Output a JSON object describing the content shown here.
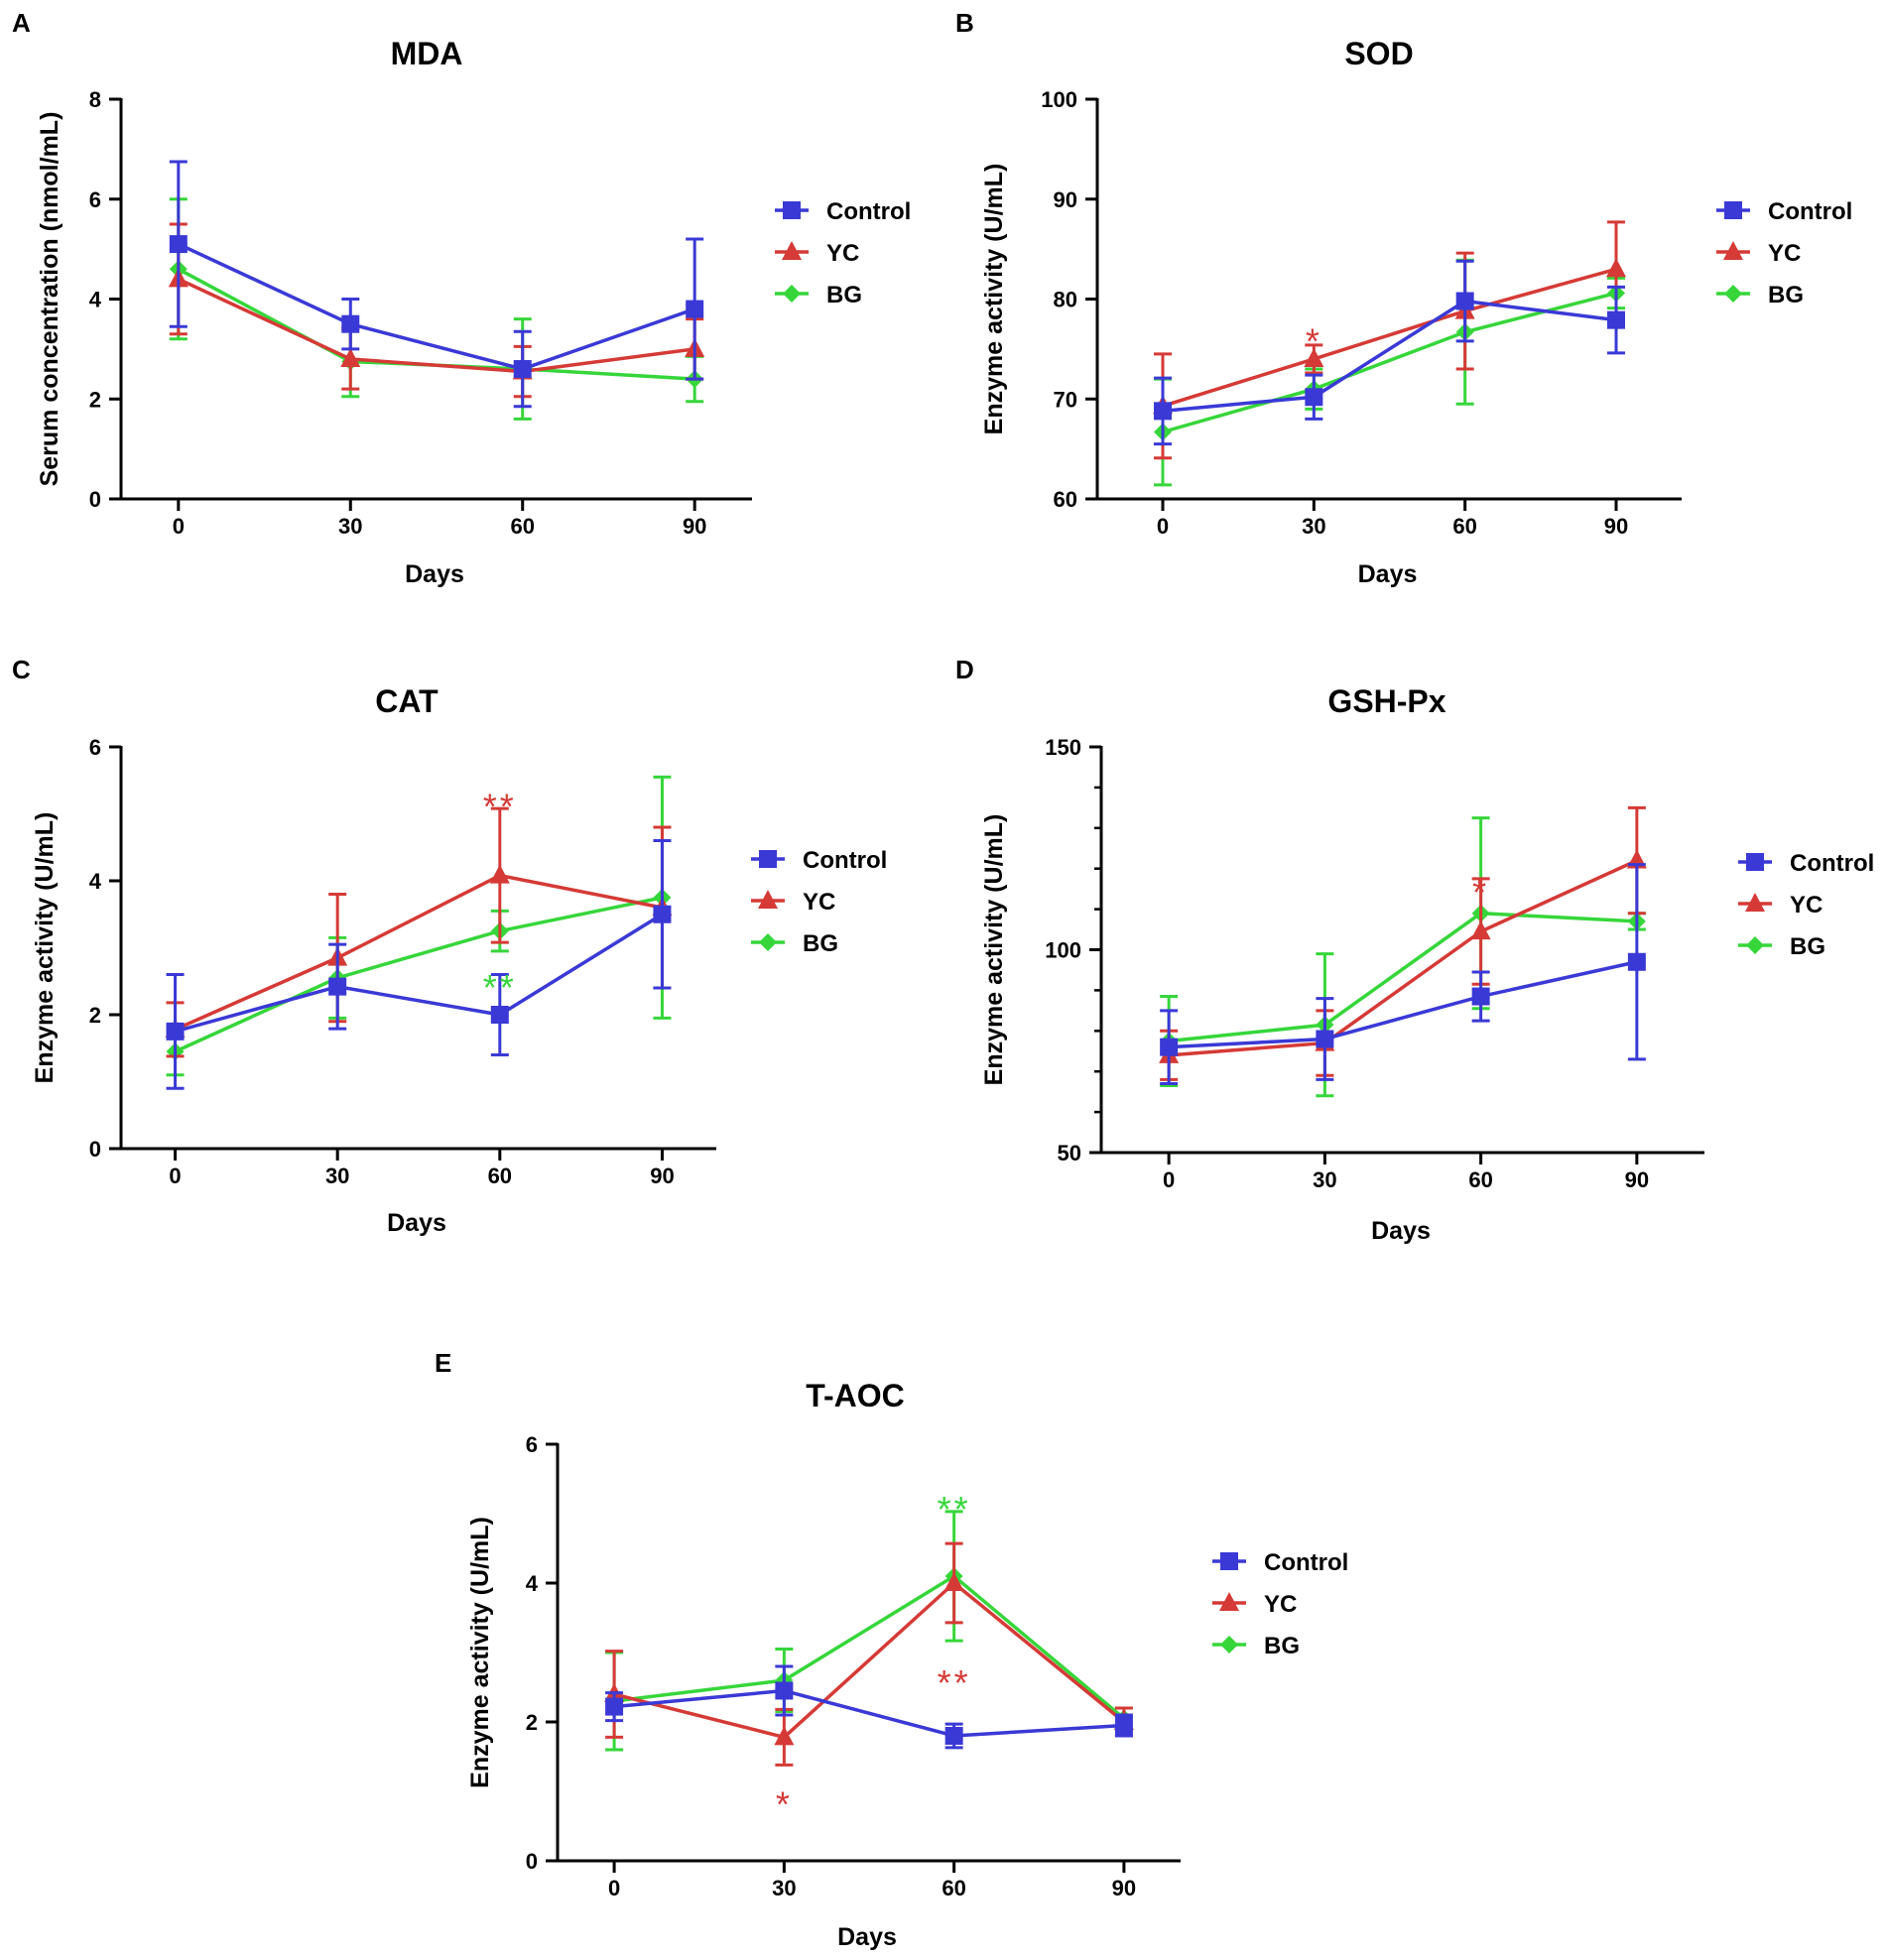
{
  "legend_entries": [
    "Control",
    "YC",
    "BG"
  ],
  "series_colors": {
    "Control": "#3a39d6",
    "YC": "#d53a36",
    "BG": "#36d63a"
  },
  "series_markers": {
    "Control": "square",
    "YC": "triangle",
    "BG": "diamond"
  },
  "chart_data": [
    {
      "panel": "A",
      "type": "line",
      "title": "MDA",
      "xlabel": "Days",
      "ylabel": "Serum concentration (nmol/mL)",
      "x": [
        0,
        30,
        60,
        90
      ],
      "xlim": [
        -10,
        100
      ],
      "ylim": [
        0,
        8
      ],
      "yticks": [
        0,
        2,
        4,
        6,
        8
      ],
      "minor_ticks": [],
      "series": [
        {
          "name": "Control",
          "values": [
            5.1,
            3.5,
            2.6,
            3.8
          ],
          "errors": [
            1.65,
            0.5,
            0.75,
            1.4
          ]
        },
        {
          "name": "YC",
          "values": [
            4.4,
            2.8,
            2.55,
            3.0
          ],
          "errors": [
            1.1,
            0.6,
            0.5,
            0.6
          ]
        },
        {
          "name": "BG",
          "values": [
            4.6,
            2.75,
            2.6,
            2.4
          ],
          "errors": [
            1.4,
            0.7,
            1.0,
            0.45
          ]
        }
      ],
      "annotations": []
    },
    {
      "panel": "B",
      "type": "line",
      "title": "SOD",
      "xlabel": "Days",
      "ylabel": "Enzyme activity (U/mL)",
      "x": [
        0,
        30,
        60,
        90
      ],
      "xlim": [
        -13,
        103
      ],
      "ylim": [
        60,
        100
      ],
      "yticks": [
        60,
        70,
        80,
        90,
        100
      ],
      "minor_ticks": [],
      "series": [
        {
          "name": "Control",
          "values": [
            68.8,
            70.2,
            79.8,
            77.9
          ],
          "errors": [
            3.3,
            2.2,
            4.0,
            3.3
          ]
        },
        {
          "name": "YC",
          "values": [
            69.3,
            74.0,
            78.8,
            83.0
          ],
          "errors": [
            5.2,
            1.4,
            5.8,
            4.7
          ]
        },
        {
          "name": "BG",
          "values": [
            66.7,
            71.0,
            76.7,
            80.6
          ],
          "errors": [
            5.3,
            2.0,
            7.2,
            1.5
          ]
        }
      ],
      "annotations": [
        {
          "x": 30,
          "y": 76.7,
          "text": "*",
          "color": "#d53a36"
        }
      ]
    },
    {
      "panel": "C",
      "type": "line",
      "title": "CAT",
      "xlabel": "Days",
      "ylabel": "Enzyme activity (U/mL)",
      "x": [
        0,
        30,
        60,
        90
      ],
      "xlim": [
        -10,
        100
      ],
      "ylim": [
        0,
        6
      ],
      "yticks": [
        0,
        2,
        4,
        6
      ],
      "minor_ticks": [],
      "series": [
        {
          "name": "Control",
          "values": [
            1.75,
            2.42,
            2.0,
            3.5
          ],
          "errors": [
            0.85,
            0.63,
            0.6,
            1.1
          ]
        },
        {
          "name": "YC",
          "values": [
            1.78,
            2.85,
            4.08,
            3.6
          ],
          "errors": [
            0.4,
            0.95,
            1.0,
            1.2
          ]
        },
        {
          "name": "BG",
          "values": [
            1.45,
            2.55,
            3.25,
            3.75
          ],
          "errors": [
            0.35,
            0.6,
            0.3,
            1.8
          ]
        }
      ],
      "annotations": [
        {
          "x": 60,
          "y": 5.25,
          "text": "**",
          "color": "#d53a36"
        },
        {
          "x": 60,
          "y": 2.55,
          "text": "**",
          "color": "#36d63a"
        }
      ]
    },
    {
      "panel": "D",
      "type": "line",
      "title": "GSH-Px",
      "xlabel": "Days",
      "ylabel": "Enzyme activity (U/mL)",
      "x": [
        0,
        30,
        60,
        90
      ],
      "xlim": [
        -13,
        103
      ],
      "ylim": [
        50,
        150
      ],
      "yticks": [
        50,
        100,
        150
      ],
      "minor_ticks": [
        60,
        70,
        80,
        90,
        110,
        120,
        130,
        140
      ],
      "series": [
        {
          "name": "Control",
          "values": [
            76.0,
            78.0,
            88.5,
            97.0
          ],
          "errors": [
            9.0,
            10.0,
            6.0,
            24.0
          ]
        },
        {
          "name": "YC",
          "values": [
            74.0,
            77.0,
            104.5,
            122.0
          ],
          "errors": [
            6.0,
            8.0,
            13.0,
            13.0
          ]
        },
        {
          "name": "BG",
          "values": [
            77.5,
            81.5,
            109.0,
            107.0
          ],
          "errors": [
            11.0,
            17.5,
            23.5,
            2.0
          ]
        }
      ],
      "annotations": [
        {
          "x": 60,
          "y": 116.5,
          "text": "*",
          "color": "#d53a36"
        }
      ]
    },
    {
      "panel": "E",
      "type": "line",
      "title": "T-AOC",
      "xlabel": "Days",
      "ylabel": "Enzyme activity (U/mL)",
      "x": [
        0,
        30,
        60,
        90
      ],
      "xlim": [
        -10,
        100
      ],
      "ylim": [
        0,
        6
      ],
      "yticks": [
        0,
        2,
        4,
        6
      ],
      "minor_ticks": [],
      "series": [
        {
          "name": "Control",
          "values": [
            2.22,
            2.45,
            1.8,
            1.95
          ],
          "errors": [
            0.2,
            0.35,
            0.17,
            0.15
          ]
        },
        {
          "name": "YC",
          "values": [
            2.4,
            1.78,
            4.0,
            2.0
          ],
          "errors": [
            0.62,
            0.4,
            0.57,
            0.2
          ]
        },
        {
          "name": "BG",
          "values": [
            2.3,
            2.6,
            4.1,
            2.05
          ],
          "errors": [
            0.7,
            0.45,
            0.93,
            0.15
          ]
        }
      ],
      "annotations": [
        {
          "x": 60,
          "y": 5.2,
          "text": "**",
          "color": "#36d63a"
        },
        {
          "x": 60,
          "y": 2.7,
          "text": "**",
          "color": "#d53a36"
        },
        {
          "x": 30,
          "y": 0.95,
          "text": "*",
          "color": "#d53a36"
        }
      ]
    }
  ]
}
